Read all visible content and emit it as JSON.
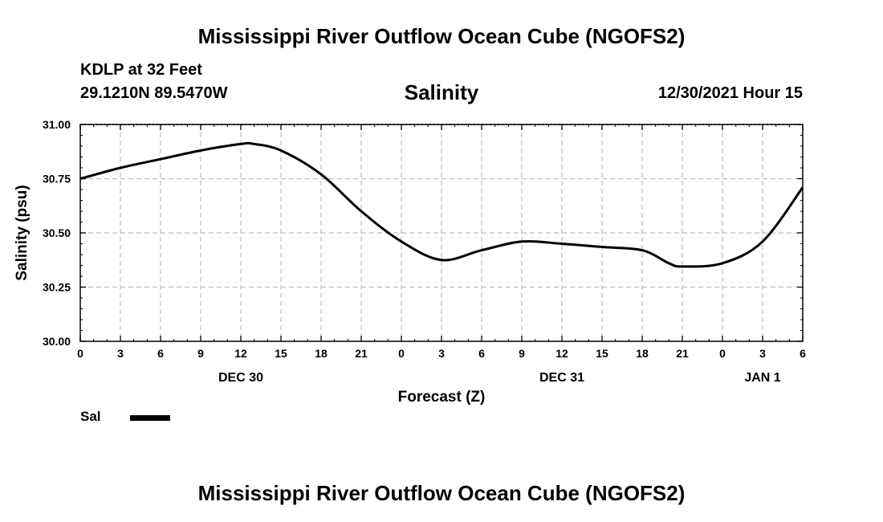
{
  "header": {
    "title": "Mississippi River Outflow Ocean Cube (NGOFS2)",
    "station": "KDLP at 32 Feet",
    "coords": "29.1210N  89.5470W",
    "subtitle": "Salinity",
    "datetime": "12/30/2021 Hour 15"
  },
  "footer": {
    "title": "Mississippi River Outflow Ocean Cube (NGOFS2)"
  },
  "legend": {
    "label": "Sal"
  },
  "chart_data": {
    "type": "line",
    "title": "Salinity",
    "xlabel": "Forecast (Z)",
    "ylabel": "Salinity (psu)",
    "xlim": [
      0,
      54
    ],
    "ylim": [
      30.0,
      31.0
    ],
    "x_ticks": [
      0,
      3,
      6,
      9,
      12,
      15,
      18,
      21,
      24,
      27,
      30,
      33,
      36,
      39,
      42,
      45,
      48,
      51,
      54
    ],
    "x_tick_labels": [
      "0",
      "3",
      "6",
      "9",
      "12",
      "15",
      "18",
      "21",
      "0",
      "3",
      "6",
      "9",
      "12",
      "15",
      "18",
      "21",
      "0",
      "3",
      "6"
    ],
    "y_ticks": [
      30.0,
      30.25,
      30.5,
      30.75,
      31.0
    ],
    "y_tick_labels": [
      "30.00",
      "30.25",
      "30.50",
      "30.75",
      "31.00"
    ],
    "date_labels": [
      {
        "x": 12,
        "label": "DEC 30"
      },
      {
        "x": 36,
        "label": "DEC 31"
      },
      {
        "x": 51,
        "label": "JAN 1"
      }
    ],
    "grid": true,
    "series": [
      {
        "name": "Sal",
        "color": "#000000",
        "x": [
          0,
          3,
          6,
          9,
          12,
          13,
          15,
          18,
          21,
          24,
          27,
          30,
          33,
          36,
          39,
          42,
          44,
          45,
          48,
          51,
          54
        ],
        "values": [
          30.75,
          30.8,
          30.84,
          30.88,
          30.91,
          30.91,
          30.88,
          30.77,
          30.6,
          30.46,
          30.375,
          30.42,
          30.46,
          30.45,
          30.435,
          30.42,
          30.36,
          30.345,
          30.36,
          30.46,
          30.71
        ]
      }
    ]
  }
}
